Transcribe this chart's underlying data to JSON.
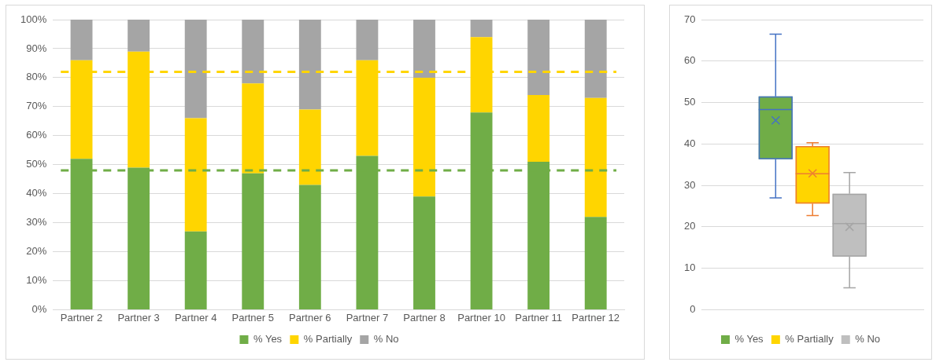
{
  "chart_data": [
    {
      "type": "bar",
      "stacked": true,
      "categories": [
        "Partner 2",
        "Partner 3",
        "Partner 4",
        "Partner 5",
        "Partner 6",
        "Partner 7",
        "Partner 8",
        "Partner 10",
        "Partner 11",
        "Partner 12"
      ],
      "series": [
        {
          "name": "% Yes",
          "color": "#70ad47",
          "values": [
            52,
            49,
            27,
            47,
            43,
            53,
            39,
            68,
            51,
            32
          ]
        },
        {
          "name": "% Partially",
          "color": "#ffd500",
          "values": [
            34,
            40,
            39,
            31,
            26,
            33,
            41,
            26,
            23,
            41
          ]
        },
        {
          "name": "% No",
          "color": "#a5a5a5",
          "values": [
            14,
            11,
            34,
            22,
            31,
            14,
            20,
            6,
            26,
            27
          ]
        }
      ],
      "ylim": [
        0,
        100
      ],
      "yticks": [
        {
          "value": 0,
          "label": "0%"
        },
        {
          "value": 10,
          "label": "10%"
        },
        {
          "value": 20,
          "label": "20%"
        },
        {
          "value": 30,
          "label": "30%"
        },
        {
          "value": 40,
          "label": "40%"
        },
        {
          "value": 50,
          "label": "50%"
        },
        {
          "value": 60,
          "label": "60%"
        },
        {
          "value": 70,
          "label": "70%"
        },
        {
          "value": 80,
          "label": "80%"
        },
        {
          "value": 90,
          "label": "90%"
        },
        {
          "value": 100,
          "label": "100%"
        }
      ],
      "grid": "y",
      "legend": "bottom",
      "ref_lines": [
        {
          "axis": "y",
          "value": 82,
          "color": "#ffd500",
          "line_style": "dashed"
        },
        {
          "axis": "y",
          "value": 48,
          "color": "#70ad47",
          "line_style": "dashed"
        }
      ]
    },
    {
      "type": "box",
      "categories": [
        null
      ],
      "series": [
        {
          "name": "% Yes",
          "color": "#70ad47",
          "boxes": [
            {
              "low": 27,
              "q1": 36.3,
              "median": 48.3,
              "q3": 51.5,
              "high": 66.5,
              "mean": 45.7
            }
          ]
        },
        {
          "name": "% Partially",
          "color": "#ffd500",
          "boxes": [
            {
              "low": 22.7,
              "q1": 25.6,
              "median": 32.8,
              "q3": 39.5,
              "high": 40.3,
              "mean": 32.9
            }
          ]
        },
        {
          "name": "% No",
          "color": "#bfbfbf",
          "boxes": [
            {
              "low": 5.3,
              "q1": 12.8,
              "median": 20.8,
              "q3": 28,
              "high": 33.1,
              "mean": 20
            }
          ]
        }
      ],
      "ylim": [
        0,
        70
      ],
      "yticks": [
        0,
        10,
        20,
        30,
        40,
        50,
        60,
        70
      ],
      "grid": "y",
      "legend": "bottom"
    }
  ]
}
